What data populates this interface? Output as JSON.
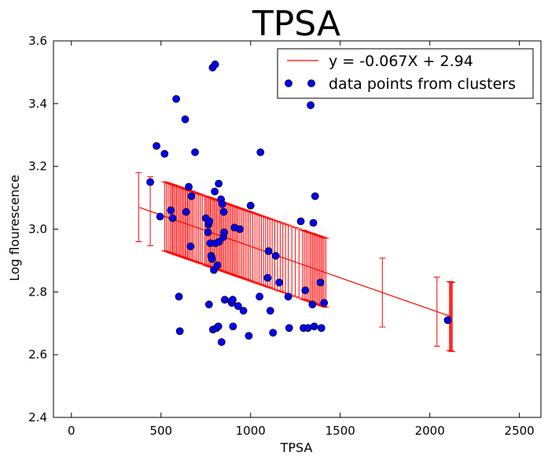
{
  "chart_data": {
    "type": "scatter",
    "title": "TPSA",
    "xlabel": "TPSA",
    "ylabel": "Log flourescence",
    "xlim": [
      -100,
      2620
    ],
    "ylim": [
      2.4,
      3.6
    ],
    "xticks": [
      0,
      500,
      1000,
      1500,
      2000,
      2500
    ],
    "yticks": [
      2.4,
      2.6,
      2.8,
      3.0,
      3.2,
      3.4,
      3.6
    ],
    "xtick_labels": [
      "0",
      "500",
      "1000",
      "1500",
      "2000",
      "2500"
    ],
    "ytick_labels": [
      "2.4",
      "2.6",
      "2.8",
      "3.0",
      "3.2",
      "3.4",
      "3.6"
    ],
    "grid": false,
    "legend_position": "top-right",
    "series": [
      {
        "name": "y = -0.067X + 2.94",
        "type": "line",
        "color": "#ff0000",
        "slope_per_1000": -0.2,
        "intercept": 3.145,
        "x": [
          380,
          2120
        ]
      },
      {
        "name": "data points from clusters",
        "type": "scatter",
        "color": "#0000ff",
        "edge_color": "#000000",
        "points": [
          [
            440,
            3.15
          ],
          [
            475,
            3.265
          ],
          [
            495,
            3.04
          ],
          [
            520,
            3.24
          ],
          [
            555,
            3.06
          ],
          [
            565,
            3.035
          ],
          [
            585,
            3.415
          ],
          [
            600,
            2.785
          ],
          [
            605,
            2.675
          ],
          [
            635,
            3.35
          ],
          [
            640,
            3.055
          ],
          [
            655,
            3.135
          ],
          [
            665,
            2.945
          ],
          [
            670,
            3.105
          ],
          [
            690,
            3.245
          ],
          [
            750,
            3.035
          ],
          [
            762,
            2.99
          ],
          [
            765,
            3.015
          ],
          [
            768,
            2.76
          ],
          [
            770,
            3.025
          ],
          [
            775,
            2.955
          ],
          [
            780,
            2.915
          ],
          [
            785,
            2.905
          ],
          [
            788,
            3.515
          ],
          [
            790,
            2.68
          ],
          [
            795,
            2.87
          ],
          [
            800,
            3.12
          ],
          [
            802,
            3.525
          ],
          [
            805,
            2.955
          ],
          [
            810,
            2.685
          ],
          [
            815,
            2.885
          ],
          [
            820,
            2.69
          ],
          [
            822,
            3.145
          ],
          [
            825,
            2.96
          ],
          [
            835,
            3.095
          ],
          [
            838,
            2.64
          ],
          [
            842,
            3.08
          ],
          [
            848,
            2.975
          ],
          [
            850,
            3.055
          ],
          [
            852,
            2.99
          ],
          [
            856,
            2.775
          ],
          [
            892,
            2.77
          ],
          [
            895,
            2.765
          ],
          [
            900,
            2.775
          ],
          [
            902,
            2.69
          ],
          [
            910,
            3.005
          ],
          [
            930,
            2.755
          ],
          [
            940,
            3.0
          ],
          [
            960,
            2.74
          ],
          [
            990,
            2.66
          ],
          [
            1000,
            3.075
          ],
          [
            1050,
            2.785
          ],
          [
            1055,
            3.245
          ],
          [
            1095,
            2.845
          ],
          [
            1100,
            2.93
          ],
          [
            1110,
            2.74
          ],
          [
            1125,
            2.67
          ],
          [
            1140,
            2.915
          ],
          [
            1160,
            2.83
          ],
          [
            1210,
            2.785
          ],
          [
            1215,
            2.685
          ],
          [
            1280,
            3.025
          ],
          [
            1295,
            2.685
          ],
          [
            1305,
            2.805
          ],
          [
            1320,
            2.685
          ],
          [
            1335,
            3.395
          ],
          [
            1345,
            2.76
          ],
          [
            1350,
            3.02
          ],
          [
            1355,
            2.69
          ],
          [
            1360,
            3.105
          ],
          [
            1390,
            2.83
          ],
          [
            1395,
            2.685
          ],
          [
            1410,
            2.765
          ],
          [
            2100,
            2.71
          ]
        ]
      },
      {
        "name": "",
        "type": "errorbar",
        "color": "#ff0000",
        "half_width": 0.11,
        "x": [
          375,
          440,
          520,
          530,
          540,
          550,
          558,
          565,
          572,
          580,
          587,
          595,
          603,
          610,
          618,
          625,
          633,
          640,
          648,
          655,
          663,
          672,
          680,
          690,
          700,
          710,
          720,
          730,
          745,
          752,
          760,
          768,
          775,
          782,
          790,
          797,
          805,
          812,
          820,
          828,
          835,
          842,
          850,
          858,
          866,
          874,
          882,
          890,
          898,
          906,
          914,
          922,
          930,
          940,
          950,
          960,
          970,
          980,
          990,
          1000,
          1012,
          1024,
          1036,
          1048,
          1060,
          1072,
          1084,
          1096,
          1108,
          1120,
          1135,
          1150,
          1165,
          1180,
          1195,
          1210,
          1230,
          1250,
          1270,
          1290,
          1300,
          1310,
          1320,
          1330,
          1338,
          1346,
          1354,
          1362,
          1370,
          1378,
          1386,
          1394,
          1402,
          1410,
          1420,
          1735,
          2040,
          2110,
          2115,
          2120,
          2125
        ]
      }
    ]
  }
}
